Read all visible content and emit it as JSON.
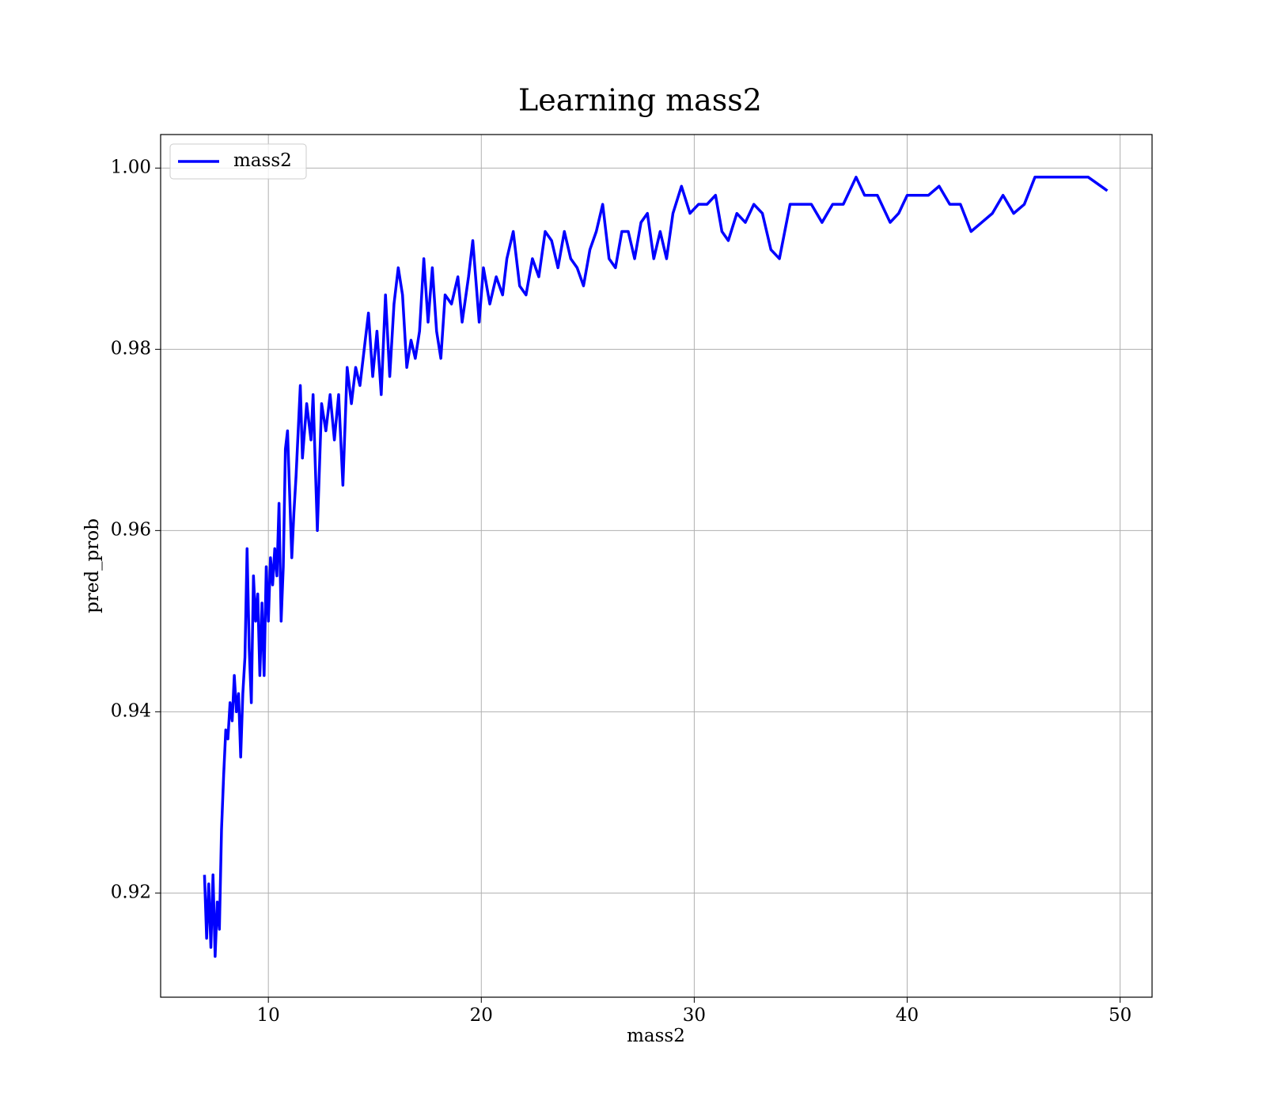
{
  "chart_data": {
    "type": "line",
    "title": "Learning mass2",
    "xlabel": "mass2",
    "ylabel": "pred_prob",
    "x": [
      7.0,
      7.1,
      7.2,
      7.3,
      7.4,
      7.5,
      7.6,
      7.7,
      7.8,
      7.9,
      8.0,
      8.1,
      8.2,
      8.3,
      8.4,
      8.5,
      8.6,
      8.7,
      8.8,
      8.9,
      9.0,
      9.1,
      9.2,
      9.3,
      9.4,
      9.5,
      9.6,
      9.7,
      9.8,
      9.9,
      10.0,
      10.1,
      10.2,
      10.3,
      10.4,
      10.5,
      10.6,
      10.7,
      10.8,
      10.9,
      11.0,
      11.1,
      11.2,
      11.3,
      11.5,
      11.6,
      11.8,
      12.0,
      12.1,
      12.3,
      12.5,
      12.7,
      12.9,
      13.1,
      13.3,
      13.5,
      13.7,
      13.9,
      14.1,
      14.3,
      14.5,
      14.7,
      14.9,
      15.1,
      15.3,
      15.5,
      15.7,
      15.9,
      16.1,
      16.3,
      16.5,
      16.7,
      16.9,
      17.1,
      17.3,
      17.5,
      17.7,
      17.9,
      18.1,
      18.3,
      18.6,
      18.9,
      19.1,
      19.4,
      19.6,
      19.9,
      20.1,
      20.4,
      20.7,
      21.0,
      21.2,
      21.5,
      21.8,
      22.1,
      22.4,
      22.7,
      23.0,
      23.3,
      23.6,
      23.9,
      24.2,
      24.5,
      24.8,
      25.1,
      25.4,
      25.7,
      26.0,
      26.3,
      26.6,
      26.9,
      27.2,
      27.5,
      27.8,
      28.1,
      28.4,
      28.7,
      29.0,
      29.4,
      29.8,
      30.2,
      30.6,
      31.0,
      31.3,
      31.6,
      32.0,
      32.4,
      32.8,
      33.2,
      33.6,
      34.0,
      34.5,
      35.0,
      35.5,
      36.0,
      36.5,
      37.0,
      37.6,
      38.0,
      38.6,
      39.2,
      39.6,
      40.0,
      40.5,
      41.0,
      41.5,
      42.0,
      42.5,
      43.0,
      43.5,
      44.0,
      44.5,
      45.0,
      45.5,
      46.0,
      47.0,
      48.5,
      49.4
    ],
    "series": [
      {
        "name": "mass2",
        "color": "#0000ff",
        "values": [
          0.922,
          0.915,
          0.921,
          0.914,
          0.922,
          0.913,
          0.919,
          0.916,
          0.927,
          0.933,
          0.938,
          0.937,
          0.941,
          0.939,
          0.944,
          0.94,
          0.942,
          0.935,
          0.942,
          0.946,
          0.958,
          0.947,
          0.941,
          0.955,
          0.95,
          0.953,
          0.944,
          0.952,
          0.944,
          0.956,
          0.95,
          0.957,
          0.954,
          0.958,
          0.955,
          0.963,
          0.95,
          0.956,
          0.969,
          0.971,
          0.964,
          0.957,
          0.962,
          0.966,
          0.976,
          0.968,
          0.974,
          0.97,
          0.975,
          0.96,
          0.974,
          0.971,
          0.975,
          0.97,
          0.975,
          0.965,
          0.978,
          0.974,
          0.978,
          0.976,
          0.98,
          0.984,
          0.977,
          0.982,
          0.975,
          0.986,
          0.977,
          0.985,
          0.989,
          0.986,
          0.978,
          0.981,
          0.979,
          0.982,
          0.99,
          0.983,
          0.989,
          0.982,
          0.979,
          0.986,
          0.985,
          0.988,
          0.983,
          0.988,
          0.992,
          0.983,
          0.989,
          0.985,
          0.988,
          0.986,
          0.99,
          0.993,
          0.987,
          0.986,
          0.99,
          0.988,
          0.993,
          0.992,
          0.989,
          0.993,
          0.99,
          0.989,
          0.987,
          0.991,
          0.993,
          0.996,
          0.99,
          0.989,
          0.993,
          0.993,
          0.99,
          0.994,
          0.995,
          0.99,
          0.993,
          0.99,
          0.995,
          0.998,
          0.995,
          0.996,
          0.996,
          0.997,
          0.993,
          0.992,
          0.995,
          0.994,
          0.996,
          0.995,
          0.991,
          0.99,
          0.996,
          0.996,
          0.996,
          0.994,
          0.996,
          0.996,
          0.999,
          0.997,
          0.997,
          0.994,
          0.995,
          0.997,
          0.997,
          0.997,
          0.998,
          0.996,
          0.996,
          0.993,
          0.994,
          0.995,
          0.997,
          0.995,
          0.996,
          0.999,
          0.999,
          0.999,
          0.9975
        ]
      }
    ],
    "xlim": [
      4.94,
      51.5
    ],
    "xticks": [
      10,
      20,
      30,
      40,
      50
    ],
    "ylim": [
      0.9085,
      1.0037
    ],
    "yticks": [
      0.92,
      0.94,
      0.96,
      0.98,
      {
        "value": 1,
        "label": "1.00"
      }
    ],
    "grid": true,
    "legend": "upper left"
  }
}
